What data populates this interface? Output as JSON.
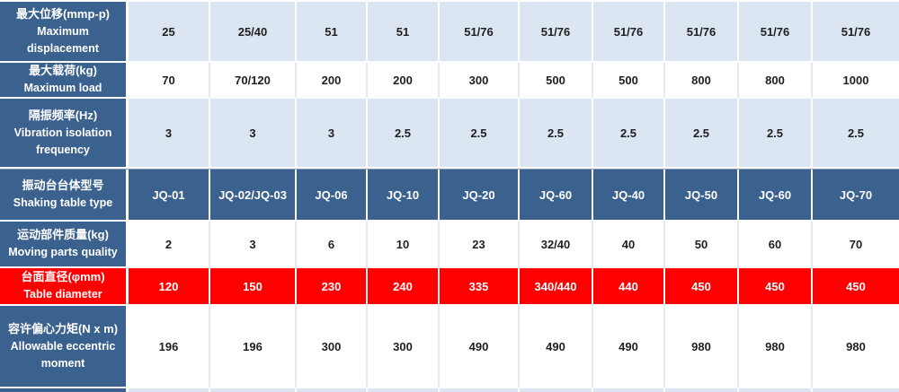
{
  "colors": {
    "header_blue": "#3b618f",
    "light_blue": "#dce6f2",
    "red": "#fe0000",
    "text_dark": "#1f1f1f"
  },
  "table": {
    "columns_count": 10,
    "rows": [
      {
        "label_zh": "最大位移(mmp-p)",
        "label_en": "Maximum displacement",
        "style": "lightblue",
        "values": [
          "25",
          "25/40",
          "51",
          "51",
          "51/76",
          "51/76",
          "51/76",
          "51/76",
          "51/76",
          "51/76"
        ]
      },
      {
        "label_zh": "最大载荷(kg)",
        "label_en": "Maximum load",
        "style": "white",
        "values": [
          "70",
          "70/120",
          "200",
          "200",
          "300",
          "500",
          "500",
          "800",
          "800",
          "1000"
        ]
      },
      {
        "label_zh": "隔振频率(Hz)",
        "label_en": "Vibration isolation frequency",
        "style": "lightblue",
        "values": [
          "3",
          "3",
          "3",
          "2.5",
          "2.5",
          "2.5",
          "2.5",
          "2.5",
          "2.5",
          "2.5"
        ]
      },
      {
        "label_zh": "振动台台体型号",
        "label_en": "Shaking table type",
        "style": "blue",
        "values": [
          "JQ-01",
          "JQ-02/JQ-03",
          "JQ-06",
          "JQ-10",
          "JQ-20",
          "JQ-60",
          "JQ-40",
          "JQ-50",
          "JQ-60",
          "JQ-70"
        ]
      },
      {
        "label_zh": "运动部件质量(kg)",
        "label_en": "Moving parts quality",
        "style": "white",
        "values": [
          "2",
          "3",
          "6",
          "10",
          "23",
          "32/40",
          "40",
          "50",
          "60",
          "70"
        ]
      },
      {
        "label_zh": "台面直径(φmm)",
        "label_en": "Table diameter",
        "style": "red",
        "values": [
          "120",
          "150",
          "230",
          "240",
          "335",
          "340/440",
          "440",
          "450",
          "450",
          "450"
        ]
      },
      {
        "label_zh": "容许偏心力矩(N x m)",
        "label_en": "Allowable eccentric moment",
        "style": "white",
        "values": [
          "196",
          "196",
          "300",
          "300",
          "490",
          "490",
          "490",
          "980",
          "980",
          "980"
        ]
      }
    ],
    "partial_bottom_row_style": "lightblue"
  }
}
